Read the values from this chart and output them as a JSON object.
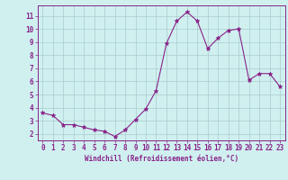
{
  "x": [
    0,
    1,
    2,
    3,
    4,
    5,
    6,
    7,
    8,
    9,
    10,
    11,
    12,
    13,
    14,
    15,
    16,
    17,
    18,
    19,
    20,
    21,
    22,
    23
  ],
  "y": [
    3.6,
    3.4,
    2.7,
    2.7,
    2.5,
    2.3,
    2.2,
    1.8,
    2.3,
    3.1,
    3.9,
    5.3,
    8.9,
    10.6,
    11.3,
    10.6,
    8.5,
    9.3,
    9.9,
    10.0,
    6.1,
    6.6,
    6.6,
    5.6
  ],
  "line_color": "#882288",
  "marker": "*",
  "marker_color": "#882288",
  "bg_color": "#d0f0f0",
  "grid_color": "#aacccc",
  "xlabel": "Windchill (Refroidissement éolien,°C)",
  "xlabel_color": "#882288",
  "tick_color": "#882288",
  "axis_color": "#882288",
  "ylim": [
    1.5,
    11.8
  ],
  "xlim": [
    -0.5,
    23.5
  ],
  "yticks": [
    2,
    3,
    4,
    5,
    6,
    7,
    8,
    9,
    10,
    11
  ],
  "xticks": [
    0,
    1,
    2,
    3,
    4,
    5,
    6,
    7,
    8,
    9,
    10,
    11,
    12,
    13,
    14,
    15,
    16,
    17,
    18,
    19,
    20,
    21,
    22,
    23
  ],
  "tick_fontsize": 5.5,
  "xlabel_fontsize": 5.5
}
